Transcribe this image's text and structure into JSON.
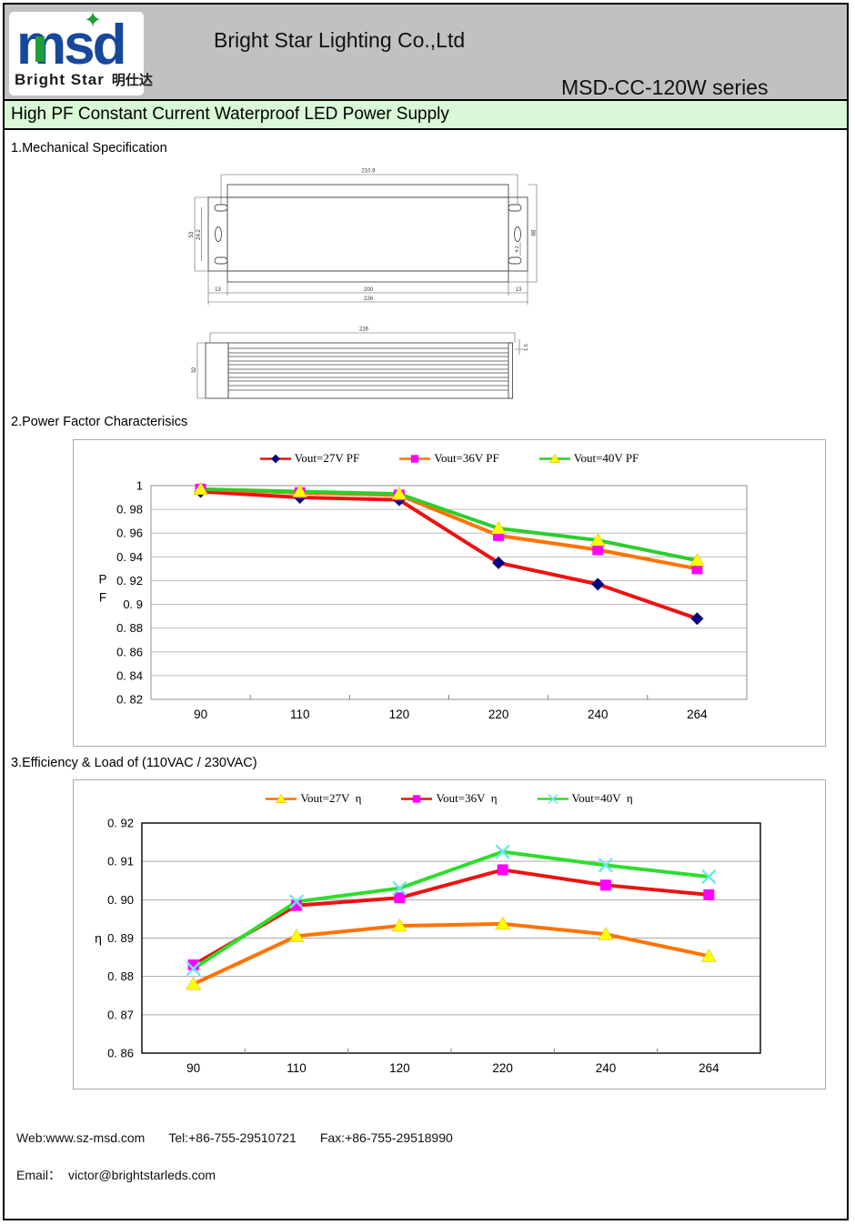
{
  "header": {
    "logo": {
      "msd": "MSD",
      "star_icon": "✦",
      "brand_en": "Bright Star",
      "brand_cn": "明仕达"
    },
    "company": "Bright Star Lighting Co.,Ltd",
    "series": "MSD-CC-120W series",
    "banner": "High PF Constant Current Waterproof LED Power Supply"
  },
  "sections": {
    "mech_title": "1.Mechanical Specification",
    "pf_title": "2.Power Factor Characterisics",
    "eff_title": "3.Efficiency & Load of (110VAC / 230VAC)"
  },
  "mech": {
    "top_view": {
      "dim_mount_width": "210.9",
      "dim_bracket_height": "53",
      "dim_slot_span": "24.2",
      "dim_body_height": "68",
      "dim_hole": "4.2",
      "dim_end_left": "13",
      "dim_body_length": "200",
      "dim_overall_length": "226",
      "dim_end_right": "13"
    },
    "side_view": {
      "dim_overall_length": "226",
      "dim_height": "32",
      "dim_lip": "1.5"
    }
  },
  "chart_data": [
    {
      "type": "line",
      "title": "",
      "xlabel": "",
      "ylabel": "PF",
      "x_categories": [
        "90",
        "110",
        "120",
        "220",
        "240",
        "264"
      ],
      "ylim": [
        0.82,
        1.0
      ],
      "y_step": 0.02,
      "y_tick_labels": [
        "1",
        "0. 98",
        "0. 96",
        "0. 94",
        "0. 92",
        "0. 9",
        "0. 88",
        "0. 86",
        "0. 84",
        "0. 82"
      ],
      "grid": true,
      "legend_position": "top",
      "series": [
        {
          "name": "Vout=27V PF",
          "line_color": "#ee1111",
          "marker": "diamond",
          "marker_color": "#000080",
          "values": [
            0.995,
            0.99,
            0.988,
            0.935,
            0.917,
            0.888
          ]
        },
        {
          "name": "Vout=36V PF",
          "line_color": "#ff7300",
          "marker": "square",
          "marker_color": "#ff00ff",
          "values": [
            0.997,
            0.994,
            0.992,
            0.958,
            0.946,
            0.93
          ]
        },
        {
          "name": "Vout=40V PF",
          "line_color": "#2ecc2e",
          "marker": "triangle",
          "marker_color": "#ffff00",
          "values": [
            0.997,
            0.995,
            0.993,
            0.964,
            0.954,
            0.937
          ]
        }
      ]
    },
    {
      "type": "line",
      "title": "",
      "xlabel": "",
      "ylabel": "η",
      "x_categories": [
        "90",
        "110",
        "120",
        "220",
        "240",
        "264"
      ],
      "ylim": [
        0.86,
        0.92
      ],
      "y_step": 0.01,
      "y_tick_labels": [
        "0. 92",
        "0. 91",
        "0. 90",
        "0. 89",
        "0. 88",
        "0. 87",
        "0. 86"
      ],
      "grid": true,
      "legend_position": "top",
      "series": [
        {
          "name": "Vout=27V  η",
          "line_color": "#ff7300",
          "marker": "triangle",
          "marker_color": "#ffff00",
          "values": [
            0.878,
            0.8905,
            0.8932,
            0.8937,
            0.891,
            0.8853
          ]
        },
        {
          "name": "Vout=36V  η",
          "line_color": "#ee1111",
          "marker": "square",
          "marker_color": "#ff00ff",
          "values": [
            0.883,
            0.8985,
            0.9005,
            0.9078,
            0.9038,
            0.9013
          ]
        },
        {
          "name": "Vout=40V  η",
          "line_color": "#2edd2e",
          "marker": "xcross",
          "marker_color": "#6ae8e8",
          "values": [
            0.882,
            0.8995,
            0.903,
            0.9125,
            0.909,
            0.906
          ]
        }
      ]
    }
  ],
  "footer": {
    "web": "Web:www.sz-msd.com",
    "tel": "Tel:+86-755-29510721",
    "fax": "Fax:+86-755-29518990",
    "email_label": "Email：",
    "email": "victor@brightstarleds.com"
  }
}
